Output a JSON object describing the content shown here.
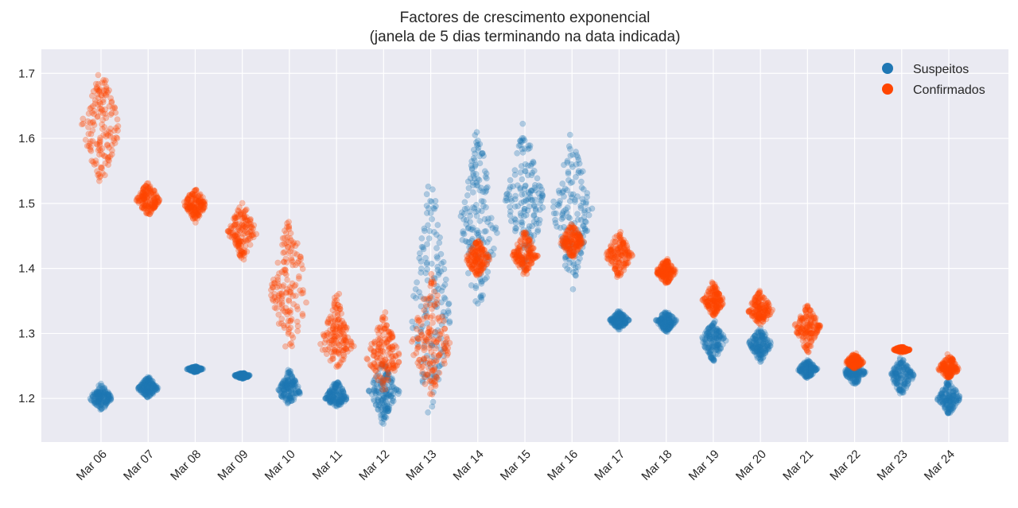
{
  "chart_data": {
    "type": "scatter",
    "subtype": "swarm",
    "title": "Factores de crescimento exponencial",
    "subtitle": "(janela de 5 dias terminando na data indicada)",
    "xlabel": "",
    "ylabel": "",
    "ylim": [
      1.133,
      1.737
    ],
    "yticks": [
      "1.2",
      "1.3",
      "1.4",
      "1.5",
      "1.6",
      "1.7"
    ],
    "ytick_values": [
      1.2,
      1.3,
      1.4,
      1.5,
      1.6,
      1.7
    ],
    "grid": true,
    "legend_position": "top-right",
    "categories": [
      "Mar 06",
      "Mar 07",
      "Mar 08",
      "Mar 09",
      "Mar 10",
      "Mar 11",
      "Mar 12",
      "Mar 13",
      "Mar 14",
      "Mar 15",
      "Mar 16",
      "Mar 17",
      "Mar 18",
      "Mar 19",
      "Mar 20",
      "Mar 21",
      "Mar 22",
      "Mar 23",
      "Mar 24"
    ],
    "series": [
      {
        "name": "Suspeitos",
        "color": "#1f77b4",
        "center": [
          1.2,
          1.215,
          1.245,
          1.235,
          1.21,
          1.2,
          1.21,
          1.32,
          1.45,
          1.5,
          1.49,
          1.32,
          1.32,
          1.29,
          1.285,
          1.245,
          1.24,
          1.235,
          1.2
        ],
        "min": [
          1.18,
          1.2,
          1.24,
          1.23,
          1.19,
          1.185,
          1.16,
          1.165,
          1.32,
          1.385,
          1.36,
          1.305,
          1.3,
          1.255,
          1.255,
          1.23,
          1.22,
          1.205,
          1.175
        ],
        "max": [
          1.225,
          1.235,
          1.25,
          1.24,
          1.245,
          1.23,
          1.26,
          1.56,
          1.625,
          1.625,
          1.615,
          1.335,
          1.335,
          1.32,
          1.31,
          1.26,
          1.26,
          1.265,
          1.23
        ]
      },
      {
        "name": "Confirmados",
        "color": "#ff4500",
        "center": [
          1.62,
          1.505,
          1.5,
          1.455,
          1.36,
          1.28,
          1.26,
          1.28,
          1.415,
          1.42,
          1.44,
          1.42,
          1.395,
          1.35,
          1.335,
          1.31,
          1.255,
          1.275,
          1.245
        ],
        "min": [
          1.52,
          1.48,
          1.47,
          1.41,
          1.26,
          1.245,
          1.21,
          1.2,
          1.385,
          1.39,
          1.415,
          1.385,
          1.375,
          1.325,
          1.31,
          1.27,
          1.245,
          1.27,
          1.23
        ],
        "max": [
          1.71,
          1.535,
          1.525,
          1.505,
          1.49,
          1.365,
          1.335,
          1.4,
          1.445,
          1.46,
          1.47,
          1.46,
          1.415,
          1.38,
          1.37,
          1.345,
          1.27,
          1.28,
          1.27
        ]
      }
    ]
  }
}
